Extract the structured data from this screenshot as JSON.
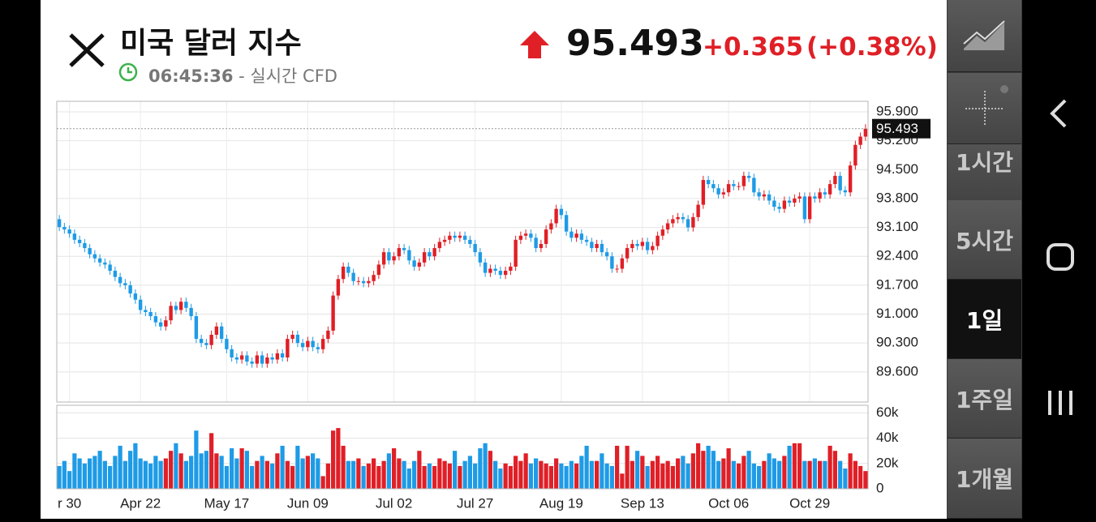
{
  "header": {
    "title": "미국 달러 지수",
    "time": "06:45:36",
    "source": " - 실시간 CFD",
    "price": "95.493",
    "change": "+0.365",
    "change_pct": "(+0.38%)"
  },
  "sidebar": {
    "intervals": [
      "1시간",
      "5시간",
      "1일",
      "1주일",
      "1개월"
    ]
  },
  "chart_data": {
    "type": "candlestick",
    "up_color": "#e01f26",
    "down_color": "#1e9be6",
    "categories": [
      null,
      null,
      "r 30",
      null,
      null,
      null,
      null,
      null,
      null,
      null,
      null,
      null,
      null,
      null,
      null,
      null,
      "Apr 22",
      null,
      null,
      null,
      null,
      null,
      null,
      null,
      null,
      null,
      null,
      null,
      null,
      null,
      null,
      null,
      null,
      "May 17",
      null,
      null,
      null,
      null,
      null,
      null,
      null,
      null,
      null,
      null,
      null,
      null,
      null,
      null,
      null,
      "Jun 09",
      null,
      null,
      null,
      null,
      null,
      null,
      null,
      null,
      null,
      null,
      null,
      null,
      null,
      null,
      null,
      null,
      "Jul 02",
      null,
      null,
      null,
      null,
      null,
      null,
      null,
      null,
      null,
      null,
      null,
      null,
      null,
      null,
      null,
      "Jul 27",
      null,
      null,
      null,
      null,
      null,
      null,
      null,
      null,
      null,
      null,
      null,
      null,
      null,
      null,
      null,
      null,
      "Aug 19",
      null,
      null,
      null,
      null,
      null,
      null,
      null,
      null,
      null,
      null,
      null,
      null,
      null,
      null,
      null,
      "Sep 13",
      null,
      null,
      null,
      null,
      null,
      null,
      null,
      null,
      null,
      null,
      null,
      null,
      null,
      null,
      null,
      null,
      "Oct 06",
      null,
      null,
      null,
      null,
      null,
      null,
      null,
      null,
      null,
      null,
      null,
      null,
      null,
      null,
      null,
      "Oct 29",
      null,
      null,
      null,
      null,
      null,
      null,
      null,
      null,
      null,
      null,
      null
    ],
    "open": [
      93.3,
      93.11,
      93.05,
      92.95,
      92.8,
      92.72,
      92.6,
      92.45,
      92.35,
      92.25,
      92.2,
      92.05,
      91.9,
      91.75,
      91.7,
      91.5,
      91.35,
      91.1,
      91.05,
      90.95,
      90.8,
      90.7,
      90.85,
      91.2,
      91.1,
      91.3,
      91.15,
      90.95,
      90.4,
      90.3,
      90.25,
      90.5,
      90.7,
      90.4,
      90.15,
      89.95,
      89.9,
      90.0,
      89.85,
      89.8,
      90.0,
      89.8,
      89.95,
      89.9,
      90.05,
      89.95,
      90.4,
      90.5,
      90.3,
      90.2,
      90.35,
      90.2,
      90.15,
      90.4,
      90.6,
      91.45,
      91.85,
      92.15,
      92.0,
      91.8,
      91.8,
      91.75,
      91.8,
      91.95,
      92.2,
      92.5,
      92.3,
      92.4,
      92.6,
      92.55,
      92.3,
      92.15,
      92.25,
      92.5,
      92.4,
      92.6,
      92.75,
      92.8,
      92.9,
      92.85,
      92.9,
      92.8,
      92.7,
      92.5,
      92.25,
      92.0,
      92.1,
      92.05,
      91.95,
      92.05,
      92.15,
      92.8,
      92.9,
      92.95,
      92.85,
      92.6,
      92.7,
      93.05,
      93.2,
      93.55,
      93.4,
      93.0,
      92.85,
      92.95,
      92.8,
      92.75,
      92.6,
      92.7,
      92.5,
      92.4,
      92.1,
      92.1,
      92.35,
      92.6,
      92.7,
      92.65,
      92.75,
      92.55,
      92.65,
      92.9,
      93.05,
      93.2,
      93.3,
      93.35,
      93.3,
      93.1,
      93.35,
      93.65,
      94.25,
      94.15,
      94.05,
      93.9,
      93.95,
      94.15,
      94.1,
      94.1,
      94.35,
      94.3,
      93.95,
      93.85,
      93.9,
      93.75,
      93.6,
      93.55,
      93.75,
      93.7,
      93.8,
      93.85,
      93.3,
      93.85,
      93.8,
      93.95,
      93.9,
      94.15,
      94.35,
      94.0,
      93.95,
      94.6,
      95.1,
      95.3
    ],
    "high": [
      93.4,
      93.21,
      93.15,
      93.05,
      92.9,
      92.82,
      92.7,
      92.55,
      92.45,
      92.35,
      92.3,
      92.15,
      92.0,
      91.85,
      91.8,
      91.6,
      91.45,
      91.2,
      91.15,
      91.05,
      90.9,
      90.95,
      91.3,
      91.3,
      91.4,
      91.4,
      91.25,
      91.05,
      90.5,
      90.4,
      90.6,
      90.8,
      90.8,
      90.5,
      90.25,
      90.05,
      90.1,
      90.1,
      89.95,
      90.1,
      90.1,
      90.05,
      90.05,
      90.15,
      90.15,
      90.5,
      90.6,
      90.6,
      90.4,
      90.45,
      90.45,
      90.3,
      90.5,
      90.7,
      91.55,
      91.95,
      92.25,
      92.25,
      92.1,
      91.9,
      91.9,
      91.9,
      92.05,
      92.3,
      92.6,
      92.6,
      92.5,
      92.7,
      92.7,
      92.65,
      92.4,
      92.35,
      92.6,
      92.6,
      92.7,
      92.85,
      92.9,
      93.0,
      93.0,
      93.0,
      93.0,
      92.9,
      92.8,
      92.6,
      92.35,
      92.2,
      92.2,
      92.15,
      92.15,
      92.25,
      92.9,
      93.0,
      93.05,
      93.05,
      92.95,
      92.8,
      93.15,
      93.3,
      93.65,
      93.65,
      93.5,
      93.1,
      93.05,
      93.05,
      92.9,
      92.85,
      92.8,
      92.8,
      92.6,
      92.5,
      92.2,
      92.45,
      92.7,
      92.8,
      92.8,
      92.85,
      92.85,
      92.75,
      93.0,
      93.15,
      93.3,
      93.4,
      93.45,
      93.45,
      93.4,
      93.45,
      93.75,
      94.35,
      94.35,
      94.25,
      94.15,
      94.05,
      94.25,
      94.25,
      94.2,
      94.45,
      94.45,
      94.4,
      94.05,
      94.0,
      94.0,
      93.85,
      93.7,
      93.85,
      93.85,
      93.9,
      93.95,
      93.95,
      93.95,
      93.95,
      94.05,
      94.05,
      94.25,
      94.45,
      94.45,
      94.1,
      94.7,
      95.2,
      95.4,
      95.6
    ],
    "low": [
      93.01,
      92.95,
      92.85,
      92.7,
      92.62,
      92.5,
      92.35,
      92.25,
      92.15,
      92.1,
      91.95,
      91.8,
      91.65,
      91.6,
      91.4,
      91.25,
      91.0,
      90.95,
      90.85,
      90.7,
      90.6,
      90.6,
      90.75,
      91.0,
      91.0,
      91.05,
      90.85,
      90.3,
      90.2,
      90.15,
      90.15,
      90.4,
      90.3,
      90.05,
      89.85,
      89.8,
      89.8,
      89.75,
      89.7,
      89.7,
      89.7,
      89.7,
      89.8,
      89.8,
      89.85,
      89.85,
      90.3,
      90.2,
      90.1,
      90.1,
      90.1,
      90.05,
      90.05,
      90.3,
      90.5,
      91.35,
      91.75,
      91.9,
      91.7,
      91.7,
      91.65,
      91.65,
      91.7,
      91.85,
      92.1,
      92.2,
      92.2,
      92.3,
      92.45,
      92.2,
      92.05,
      92.05,
      92.15,
      92.3,
      92.3,
      92.5,
      92.65,
      92.7,
      92.75,
      92.75,
      92.7,
      92.6,
      92.4,
      92.15,
      91.9,
      91.9,
      91.95,
      91.85,
      91.85,
      91.95,
      92.05,
      92.7,
      92.8,
      92.75,
      92.5,
      92.5,
      92.6,
      92.95,
      93.1,
      93.3,
      92.9,
      92.75,
      92.75,
      92.7,
      92.65,
      92.5,
      92.5,
      92.4,
      92.3,
      92.0,
      92.0,
      92.0,
      92.25,
      92.5,
      92.55,
      92.55,
      92.45,
      92.45,
      92.55,
      92.8,
      92.95,
      93.1,
      93.2,
      93.2,
      93.0,
      93.0,
      93.25,
      93.55,
      94.05,
      93.95,
      93.8,
      93.8,
      93.85,
      94.0,
      94.0,
      94.0,
      94.2,
      93.85,
      93.75,
      93.75,
      93.65,
      93.5,
      93.45,
      93.45,
      93.6,
      93.6,
      93.7,
      93.2,
      93.2,
      93.7,
      93.7,
      93.8,
      93.8,
      94.05,
      93.9,
      93.85,
      93.85,
      94.5,
      95.0,
      95.2
    ],
    "close": [
      93.11,
      93.05,
      92.95,
      92.8,
      92.72,
      92.6,
      92.45,
      92.35,
      92.25,
      92.2,
      92.05,
      91.9,
      91.75,
      91.7,
      91.5,
      91.35,
      91.1,
      91.05,
      90.95,
      90.8,
      90.7,
      90.85,
      91.2,
      91.1,
      91.3,
      91.15,
      90.95,
      90.4,
      90.3,
      90.25,
      90.5,
      90.7,
      90.4,
      90.15,
      89.95,
      89.9,
      90.0,
      89.85,
      89.8,
      90.0,
      89.8,
      89.95,
      89.9,
      90.05,
      89.95,
      90.4,
      90.5,
      90.3,
      90.2,
      90.35,
      90.2,
      90.15,
      90.4,
      90.6,
      91.45,
      91.85,
      92.15,
      92.0,
      91.8,
      91.8,
      91.75,
      91.8,
      91.95,
      92.2,
      92.5,
      92.3,
      92.4,
      92.6,
      92.55,
      92.3,
      92.15,
      92.25,
      92.5,
      92.4,
      92.6,
      92.75,
      92.8,
      92.9,
      92.85,
      92.9,
      92.8,
      92.7,
      92.5,
      92.25,
      92.0,
      92.1,
      92.05,
      91.95,
      92.05,
      92.15,
      92.8,
      92.9,
      92.95,
      92.85,
      92.6,
      92.7,
      93.05,
      93.2,
      93.55,
      93.4,
      93.0,
      92.85,
      92.95,
      92.8,
      92.75,
      92.6,
      92.7,
      92.5,
      92.4,
      92.1,
      92.1,
      92.35,
      92.6,
      92.7,
      92.65,
      92.75,
      92.55,
      92.65,
      92.9,
      93.05,
      93.2,
      93.3,
      93.35,
      93.3,
      93.1,
      93.35,
      93.65,
      94.25,
      94.15,
      94.05,
      93.9,
      93.95,
      94.15,
      94.1,
      94.1,
      94.35,
      94.3,
      93.95,
      93.85,
      93.9,
      93.75,
      93.6,
      93.55,
      93.75,
      93.7,
      93.8,
      93.85,
      93.3,
      93.85,
      93.8,
      93.95,
      93.9,
      94.15,
      94.35,
      94.0,
      93.95,
      94.6,
      95.1,
      95.3,
      95.493
    ],
    "ylim": [
      88.87,
      96.155
    ],
    "yticks": [
      {
        "value": 89.6,
        "label": "89.600"
      },
      {
        "value": 90.3,
        "label": "90.300"
      },
      {
        "value": 91.0,
        "label": "91.000"
      },
      {
        "value": 91.7,
        "label": "91.700"
      },
      {
        "value": 92.4,
        "label": "92.400"
      },
      {
        "value": 93.1,
        "label": "93.100"
      },
      {
        "value": 93.8,
        "label": "93.800"
      },
      {
        "value": 94.5,
        "label": "94.500"
      },
      {
        "value": 95.2,
        "label": "95.200"
      },
      {
        "value": 95.9,
        "label": "95.900"
      }
    ],
    "grid": true,
    "volume": {
      "ylim": [
        0,
        66000
      ],
      "yticks": [
        0,
        {
          "value": 20000,
          "label": "20k"
        },
        {
          "value": 40000,
          "label": "40k"
        },
        {
          "value": 60000,
          "label": "60k"
        }
      ],
      "values": [
        18000,
        22000,
        14000,
        28000,
        24000,
        20000,
        24000,
        26000,
        30000,
        22000,
        18000,
        26000,
        34000,
        22000,
        30000,
        36000,
        24000,
        22000,
        20000,
        26000,
        22000,
        24000,
        30000,
        36000,
        28000,
        22000,
        26000,
        46000,
        28000,
        30000,
        44000,
        28000,
        26000,
        18000,
        32000,
        24000,
        32000,
        30000,
        18000,
        22000,
        26000,
        22000,
        20000,
        28000,
        34000,
        22000,
        18000,
        34000,
        24000,
        26000,
        28000,
        24000,
        10000,
        20000,
        46000,
        48000,
        34000,
        22000,
        22000,
        24000,
        18000,
        20000,
        24000,
        18000,
        22000,
        28000,
        32000,
        24000,
        22000,
        16000,
        22000,
        30000,
        18000,
        20000,
        18000,
        24000,
        22000,
        20000,
        30000,
        18000,
        22000,
        26000,
        20000,
        32000,
        36000,
        30000,
        22000,
        16000,
        20000,
        18000,
        26000,
        22000,
        28000,
        20000,
        24000,
        22000,
        20000,
        18000,
        24000,
        20000,
        18000,
        22000,
        20000,
        26000,
        34000,
        22000,
        22000,
        28000,
        20000,
        18000,
        34000,
        12000,
        34000,
        22000,
        30000,
        26000,
        18000,
        22000,
        26000,
        20000,
        22000,
        18000,
        24000,
        26000,
        20000,
        28000,
        36000,
        30000,
        34000,
        30000,
        22000,
        24000,
        32000,
        22000,
        20000,
        26000,
        30000,
        20000,
        18000,
        22000,
        28000,
        24000,
        22000,
        26000,
        34000,
        36000,
        36000,
        22000,
        22000,
        24000,
        22000,
        22000,
        34000,
        30000,
        22000,
        16000,
        28000,
        22000,
        18000,
        14000
      ]
    }
  }
}
